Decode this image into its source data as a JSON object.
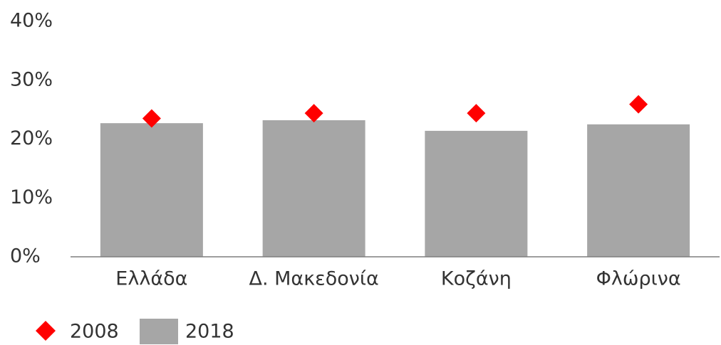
{
  "chart_data": {
    "type": "bar",
    "categories": [
      "Ελλάδα",
      "Δ. Μακεδονία",
      "Κοζάνη",
      "Φλώρινα"
    ],
    "series": [
      {
        "name": "2008",
        "type": "scatter",
        "color": "#ff0000",
        "values": [
          23.5,
          24.4,
          24.4,
          25.9
        ]
      },
      {
        "name": "2018",
        "type": "bar",
        "color": "#a6a6a6",
        "values": [
          22.7,
          23.2,
          21.4,
          22.5
        ]
      }
    ],
    "ylim": [
      0,
      40
    ],
    "yticks": [
      {
        "value": 0,
        "label": "0%"
      },
      {
        "value": 10,
        "label": "10%"
      },
      {
        "value": 20,
        "label": "20%"
      },
      {
        "value": 30,
        "label": "30%"
      },
      {
        "value": 40,
        "label": "40%"
      }
    ],
    "grid": false,
    "legend": "bottom-left"
  }
}
